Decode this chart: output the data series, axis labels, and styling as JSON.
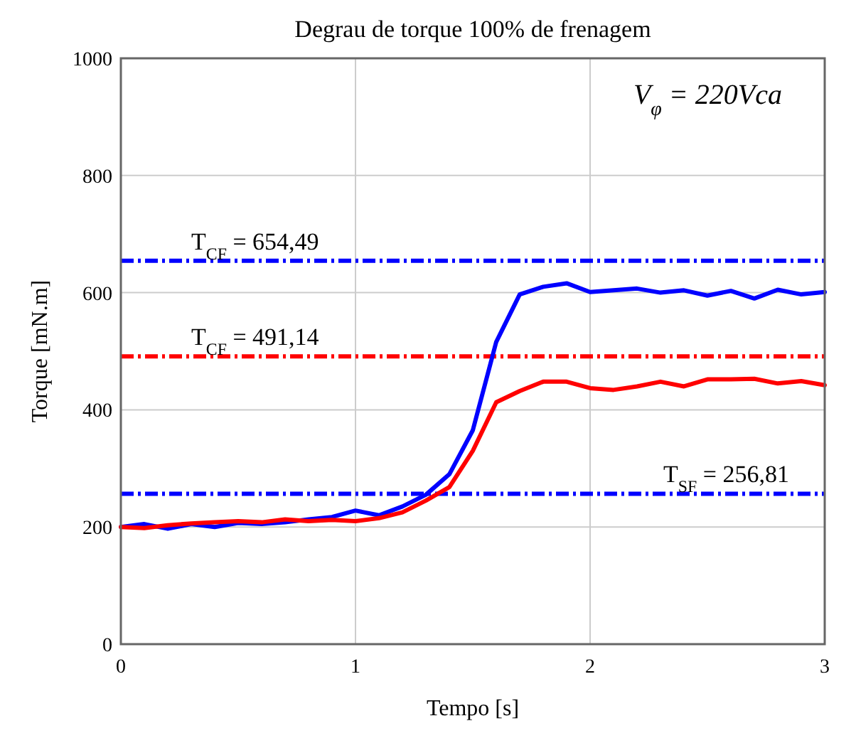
{
  "chart_data": {
    "type": "line",
    "title": "Degrau de torque 100% de frenagem",
    "xlabel": "Tempo [s]",
    "ylabel": "Torque [mN.m]",
    "x": [
      0,
      0.1,
      0.2,
      0.3,
      0.4,
      0.5,
      0.6,
      0.7,
      0.8,
      0.9,
      1,
      1.1,
      1.2,
      1.3,
      1.4,
      1.5,
      1.6,
      1.7,
      1.8,
      1.9,
      2,
      2.1,
      2.2,
      2.3,
      2.4,
      2.5,
      2.6,
      2.7,
      2.8,
      2.9,
      3
    ],
    "series": [
      {
        "color": "#0000ff",
        "values": [
          200,
          205,
          197,
          205,
          200,
          207,
          205,
          208,
          213,
          217,
          228,
          220,
          235,
          255,
          290,
          365,
          516,
          597,
          610,
          616,
          601,
          604,
          607,
          600,
          604,
          595,
          603,
          590,
          605,
          597,
          601
        ]
      },
      {
        "color": "#ff0000",
        "values": [
          200,
          198,
          203,
          206,
          208,
          210,
          208,
          213,
          210,
          212,
          210,
          215,
          225,
          245,
          268,
          330,
          413,
          432,
          448,
          448,
          437,
          434,
          440,
          448,
          440,
          452,
          452,
          453,
          445,
          449,
          442
        ]
      }
    ],
    "xlim": [
      0,
      3
    ],
    "xticks": [
      0,
      1,
      2,
      3
    ],
    "ylim": [
      0,
      1000
    ],
    "yticks": [
      0,
      200,
      400,
      600,
      800,
      1000
    ],
    "grid": true,
    "line_style": "solid",
    "marker": "none",
    "ref_lines": [
      {
        "axis": "y",
        "value": 654.49,
        "label": "T$_{CF}$ = 654,49",
        "color": "#0000ff",
        "line_style": "dashed"
      },
      {
        "axis": "y",
        "value": 491.14,
        "label": "T$_{CF}$ = 491,14",
        "color": "#ff0000",
        "line_style": "dashed"
      },
      {
        "axis": "y",
        "value": 256.81,
        "label": "T$_{SF}$ = 256,81",
        "color": "#0000ff",
        "line_style": "dashed"
      }
    ],
    "annotations": [
      "V$_{φ}$ = 220Vca"
    ]
  }
}
